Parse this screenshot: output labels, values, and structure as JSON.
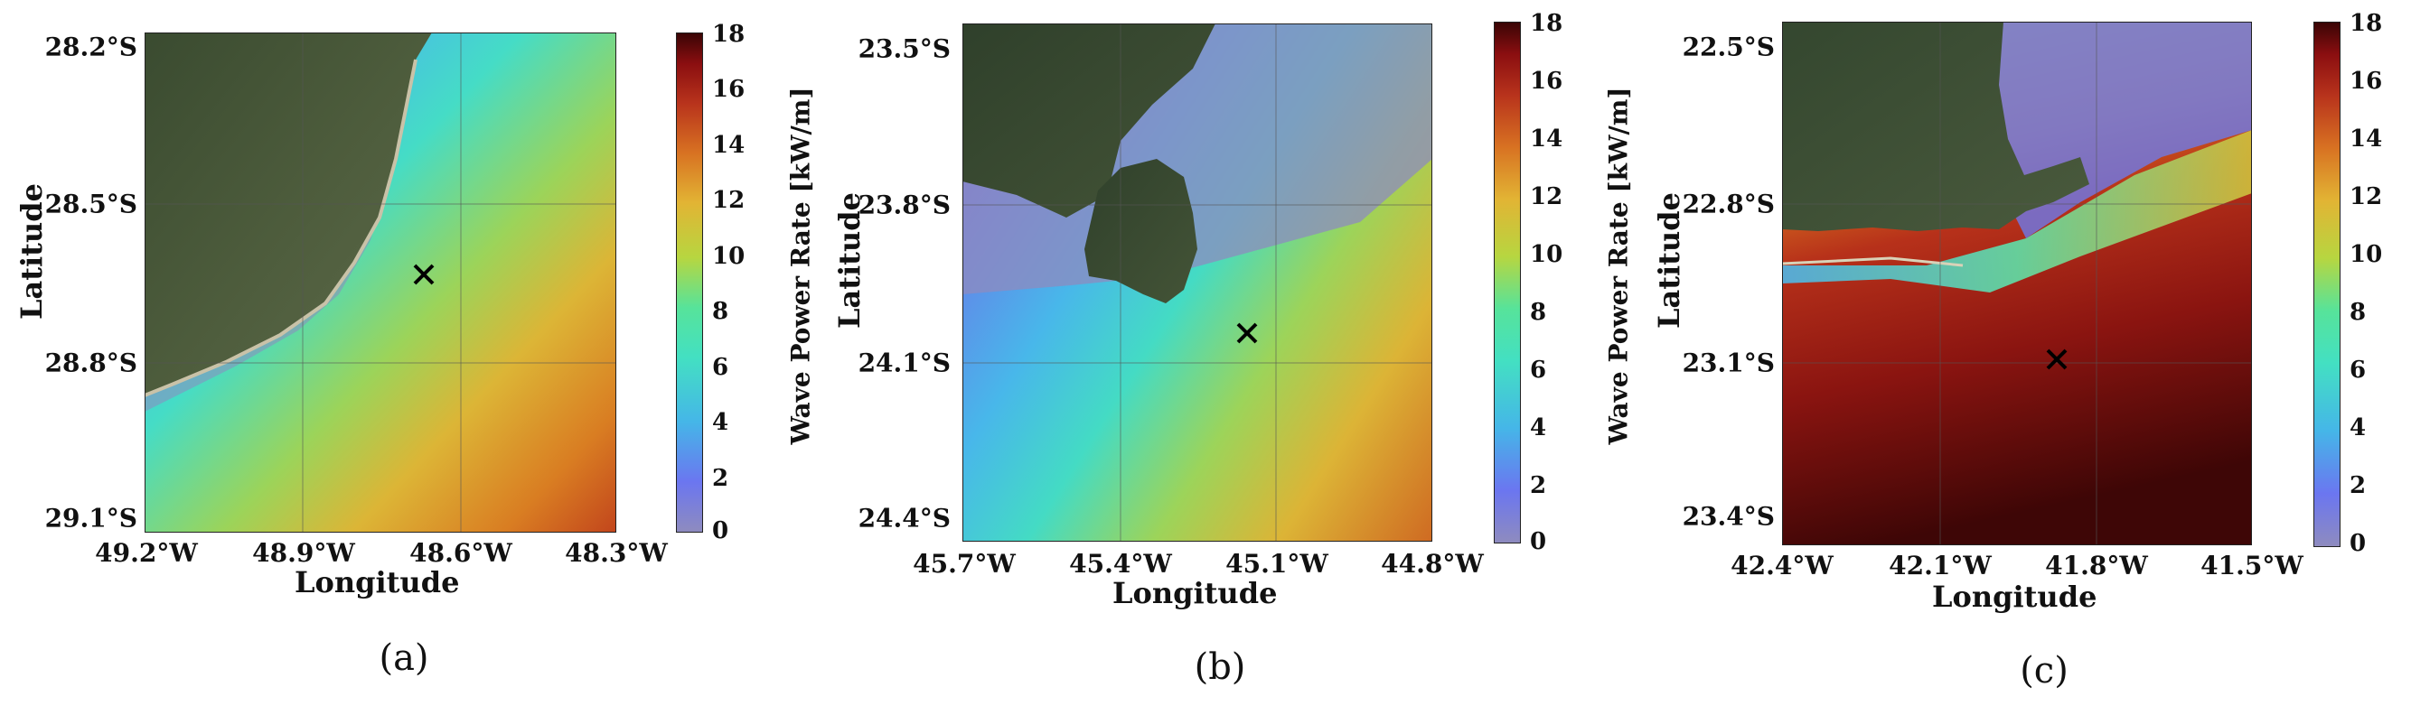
{
  "colorbar": {
    "label": "Wave Power Rate [kW/m]",
    "ticks": [
      "18",
      "16",
      "14",
      "12",
      "10",
      "8",
      "6",
      "4",
      "2",
      "0"
    ],
    "colors": [
      "#8e8bbf",
      "#6b76f0",
      "#45b6e8",
      "#43e0c2",
      "#57e39a",
      "#b7d640",
      "#e2b434",
      "#d87222",
      "#b8331c",
      "#8a0e10",
      "#3a0505"
    ]
  },
  "panels": [
    {
      "caption": "(a)",
      "xlabel": "Longitude",
      "ylabel": "Latitude",
      "yticks": [
        "28.2°S",
        "28.5°S",
        "28.8°S",
        "29.1°S"
      ],
      "xticks": [
        "49.2°W",
        "48.9°W",
        "48.6°W",
        "48.3°W"
      ],
      "site_marker": {
        "lon": -48.65,
        "lat": -28.65
      }
    },
    {
      "caption": "(b)",
      "xlabel": "Longitude",
      "ylabel": "Latitude",
      "yticks": [
        "23.5°S",
        "23.8°S",
        "24.1°S",
        "24.4°S"
      ],
      "xticks": [
        "45.7°W",
        "45.4°W",
        "45.1°W",
        "44.8°W"
      ],
      "site_marker": {
        "lon": -45.15,
        "lat": -24.04
      }
    },
    {
      "caption": "(c)",
      "xlabel": "Longitude",
      "ylabel": "Latitude",
      "yticks": [
        "22.5°S",
        "22.8°S",
        "23.1°S",
        "23.4°S"
      ],
      "xticks": [
        "42.4°W",
        "42.1°W",
        "41.8°W",
        "41.5°W"
      ],
      "site_marker": {
        "lon": -41.83,
        "lat": -23.09
      }
    }
  ]
}
